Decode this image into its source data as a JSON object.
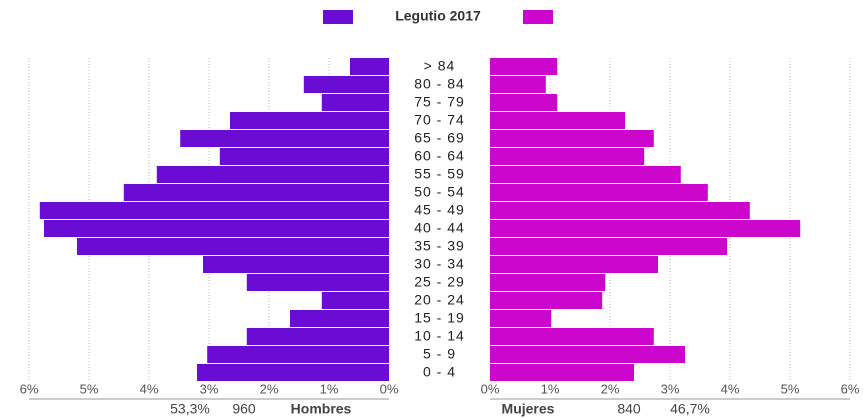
{
  "chart_data": {
    "type": "pyramid",
    "legend": "Legutio 2017",
    "categories": [
      "> 84",
      "80 - 84",
      "75 - 79",
      "70 - 74",
      "65 - 69",
      "60 - 64",
      "55 - 59",
      "50 - 54",
      "45 - 49",
      "40 - 44",
      "35 - 39",
      "30 - 34",
      "25 - 29",
      "20 - 24",
      "15 - 19",
      "10 - 14",
      "5 - 9",
      "0 - 4"
    ],
    "series": [
      {
        "name": "Hombres",
        "color": "#6a0cd3",
        "side": "left",
        "total": 960,
        "share": 53.3,
        "share_label": "53,3%",
        "values": [
          0.65,
          1.42,
          1.12,
          2.65,
          3.48,
          2.82,
          3.87,
          4.42,
          5.82,
          5.75,
          5.2,
          3.1,
          2.37,
          1.12,
          1.65,
          2.37,
          3.03,
          3.2
        ]
      },
      {
        "name": "Mujeres",
        "color": "#cc06cc",
        "side": "right",
        "total": 840,
        "share": 46.7,
        "share_label": "46,7%",
        "values": [
          1.12,
          0.93,
          1.12,
          2.25,
          2.73,
          2.57,
          3.18,
          3.63,
          4.33,
          5.17,
          3.95,
          2.8,
          1.92,
          1.87,
          1.02,
          2.73,
          3.25,
          2.4
        ]
      }
    ],
    "xlim": [
      0,
      6
    ],
    "xticks": [
      {
        "value": 0,
        "label": "0%"
      },
      {
        "value": 1,
        "label": "1%"
      },
      {
        "value": 2,
        "label": "2%"
      },
      {
        "value": 3,
        "label": "3%"
      },
      {
        "value": 4,
        "label": "4%"
      },
      {
        "value": 5,
        "label": "5%"
      },
      {
        "value": 6,
        "label": "6%"
      }
    ],
    "grid": true
  }
}
